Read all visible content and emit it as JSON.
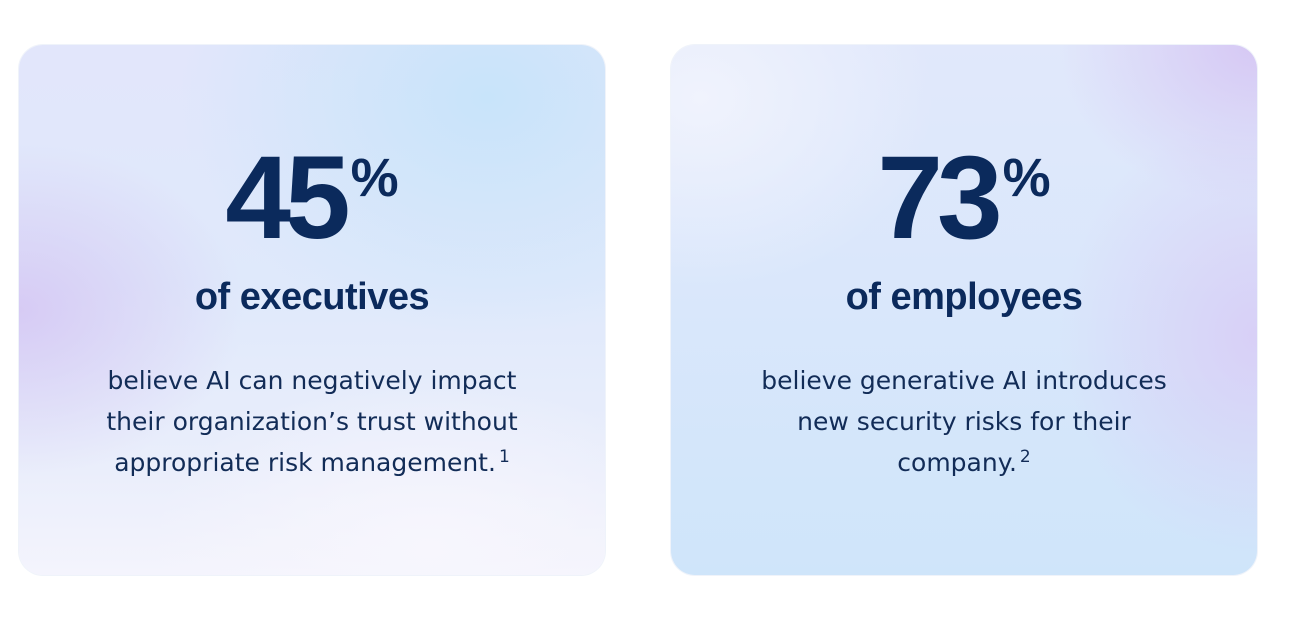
{
  "cards": [
    {
      "number": "45",
      "unit": "%",
      "label": "of executives",
      "desc_lines": [
        "believe AI can negatively impact",
        "their organization’s trust without",
        "appropriate risk management."
      ],
      "footnote": "1"
    },
    {
      "number": "73",
      "unit": "%",
      "label": "of employees",
      "desc_lines": [
        "believe generative AI introduces",
        "new security risks for their",
        "company."
      ],
      "footnote": "2"
    }
  ],
  "colors": {
    "text": "#0b2a5c",
    "page_background": "#ffffff",
    "card_gradient_lavender": "#d6c9f4",
    "card_gradient_blue": "#cfe5fa"
  }
}
